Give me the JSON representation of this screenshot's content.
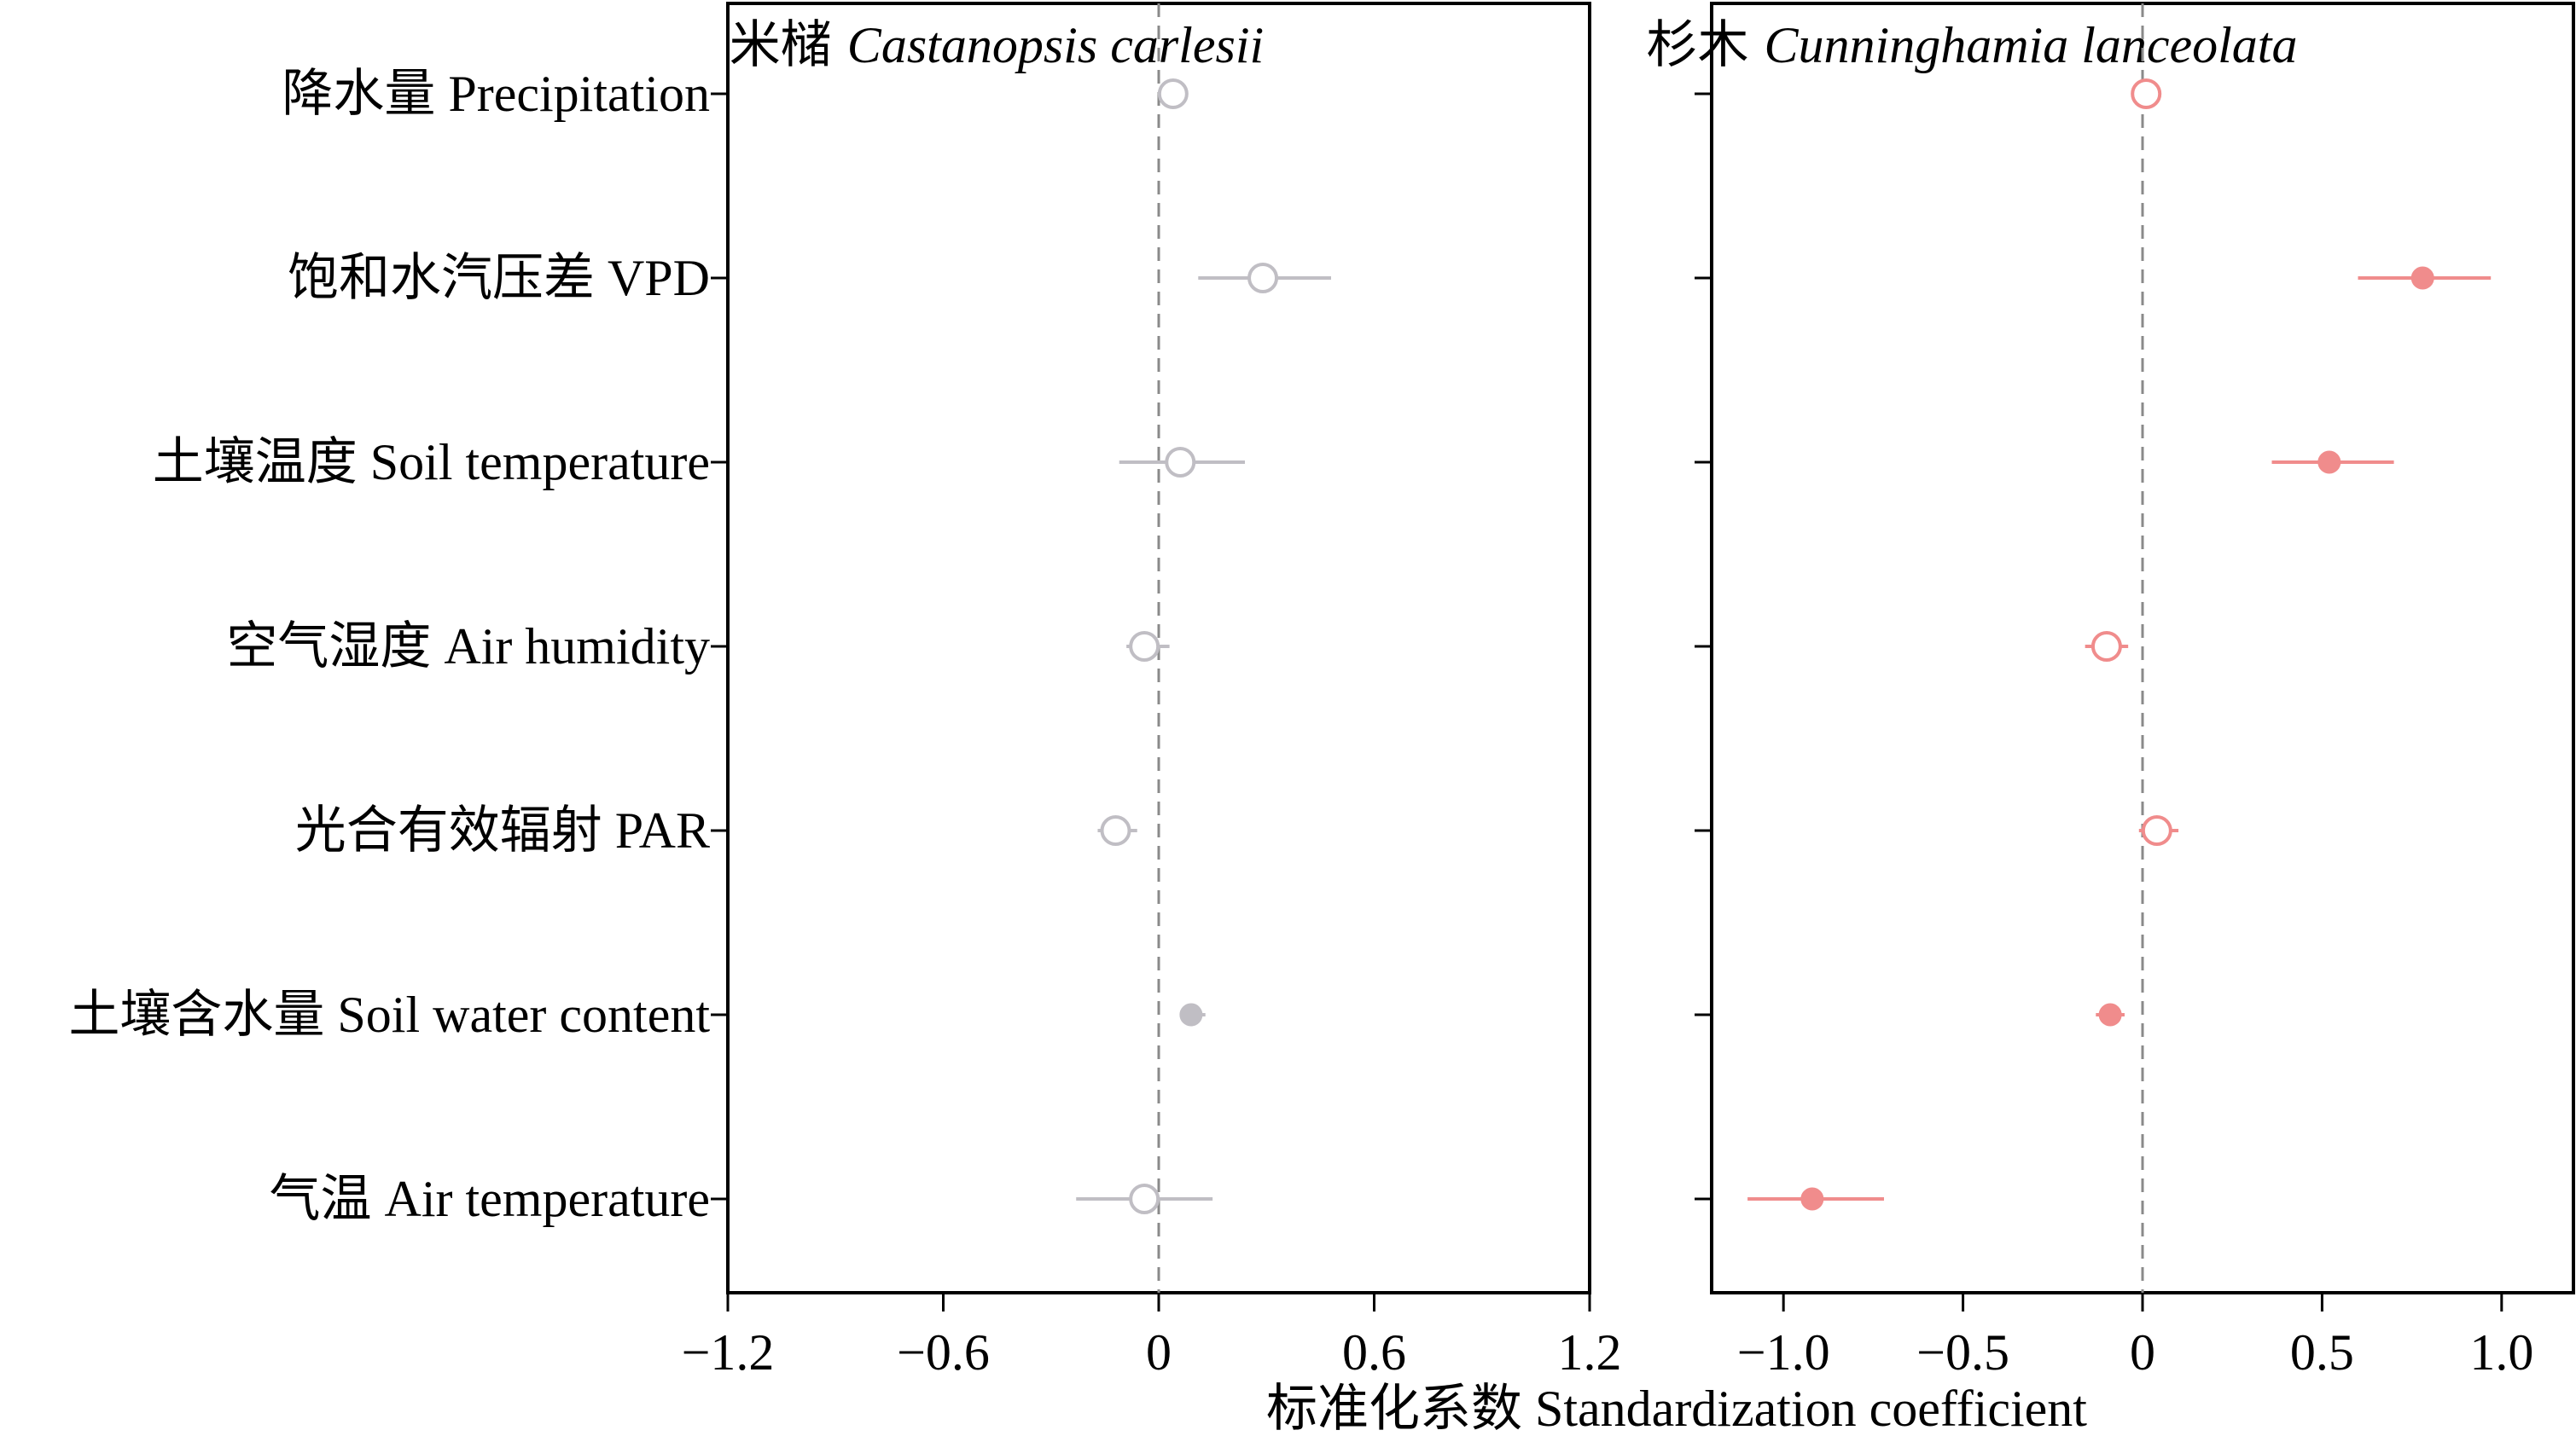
{
  "chart_data": [
    {
      "type": "scatter",
      "title_cn": "米槠",
      "title_latin": "Castanopsis carlesii",
      "color": "#c0bec4",
      "xlim": [
        -1.2,
        1.2
      ],
      "xticks": [
        -1.2,
        -0.6,
        0,
        0.6,
        1.2
      ],
      "xtick_labels": [
        "−1.2",
        "−0.6",
        "0",
        "0.6",
        "1.2"
      ],
      "reference_line": 0,
      "points": [
        {
          "variable": "降水量 Precipitation",
          "estimate": 0.04,
          "ci_low": 0.04,
          "ci_high": 0.04,
          "significant": false
        },
        {
          "variable": "饱和水汽压差 VPD",
          "estimate": 0.29,
          "ci_low": 0.11,
          "ci_high": 0.48,
          "significant": false
        },
        {
          "variable": "土壤温度 Soil temperature",
          "estimate": 0.06,
          "ci_low": -0.11,
          "ci_high": 0.24,
          "significant": false
        },
        {
          "variable": "空气湿度 Air humidity",
          "estimate": -0.04,
          "ci_low": -0.09,
          "ci_high": 0.03,
          "significant": false
        },
        {
          "variable": "光合有效辐射 PAR",
          "estimate": -0.12,
          "ci_low": -0.17,
          "ci_high": -0.06,
          "significant": false
        },
        {
          "variable": "土壤含水量 Soil water content",
          "estimate": 0.09,
          "ci_low": 0.06,
          "ci_high": 0.13,
          "significant": true
        },
        {
          "variable": "气温 Air temperature",
          "estimate": -0.04,
          "ci_low": -0.23,
          "ci_high": 0.15,
          "significant": false
        }
      ]
    },
    {
      "type": "scatter",
      "title_cn": "杉木",
      "title_latin": "Cunninghamia lanceolata",
      "color": "#f08c8c",
      "xlim": [
        -1.2,
        1.2
      ],
      "xticks": [
        -1.0,
        -0.5,
        0,
        0.5,
        1.0
      ],
      "xtick_labels": [
        "−1.0",
        "−0.5",
        "0",
        "0.5",
        "1.0"
      ],
      "reference_line": 0,
      "points": [
        {
          "variable": "降水量 Precipitation",
          "estimate": 0.01,
          "ci_low": 0.01,
          "ci_high": 0.01,
          "significant": false
        },
        {
          "variable": "饱和水汽压差 VPD",
          "estimate": 0.78,
          "ci_low": 0.6,
          "ci_high": 0.97,
          "significant": true
        },
        {
          "variable": "土壤温度 Soil temperature",
          "estimate": 0.52,
          "ci_low": 0.36,
          "ci_high": 0.7,
          "significant": true
        },
        {
          "variable": "空气湿度 Air humidity",
          "estimate": -0.1,
          "ci_low": -0.16,
          "ci_high": -0.04,
          "significant": false
        },
        {
          "variable": "光合有效辐射 PAR",
          "estimate": 0.04,
          "ci_low": -0.01,
          "ci_high": 0.1,
          "significant": false
        },
        {
          "variable": "土壤含水量 Soil water content",
          "estimate": -0.09,
          "ci_low": -0.13,
          "ci_high": -0.05,
          "significant": true
        },
        {
          "variable": "气温 Air temperature",
          "estimate": -0.92,
          "ci_low": -1.1,
          "ci_high": -0.72,
          "significant": true
        }
      ]
    }
  ],
  "xlabel": "标准化系数 Standardization coefficient"
}
